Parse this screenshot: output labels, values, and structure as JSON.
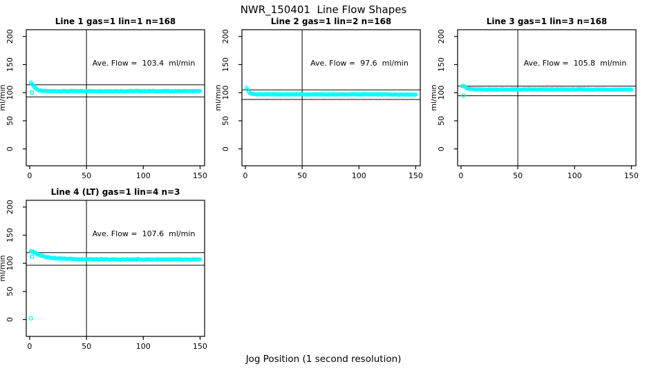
{
  "chart_data": {
    "type": "scatter",
    "title": "NWR_150401  Line Flow Shapes",
    "xlabel": "Jog Position (1 second resolution)",
    "ylabel": "ml/min",
    "xlim": [
      -3,
      154
    ],
    "ylim": [
      -30,
      212
    ],
    "xticks": [
      0,
      50,
      100,
      150
    ],
    "yticks": [
      0,
      50,
      100,
      150,
      200
    ],
    "grid": false,
    "legend": "none",
    "marker_color": "#00FFFF",
    "axis_color": "#000000",
    "vline_x": 50,
    "panels": [
      {
        "title": "Line 1 gas=1 lin=1 n=168",
        "annotation": "Ave. Flow =  103.4  ml/min",
        "ave_flow": 103.4,
        "hlines": [
          114,
          92.5
        ],
        "profile": [
          [
            1,
            117.5
          ],
          [
            2,
            116
          ],
          [
            3,
            113
          ],
          [
            4,
            110.5
          ],
          [
            5,
            108.3
          ],
          [
            6,
            106.6
          ],
          [
            7,
            105.4
          ],
          [
            8,
            104.5
          ],
          [
            10,
            103.4
          ],
          [
            12,
            103
          ],
          [
            15,
            102.8
          ],
          [
            20,
            102.7
          ],
          [
            50,
            102.7
          ],
          [
            100,
            102.8
          ],
          [
            150,
            102.6
          ]
        ],
        "outliers": [
          {
            "x": 2,
            "y": 100,
            "shape": "square"
          }
        ]
      },
      {
        "title": "Line 2 gas=1 lin=2 n=168",
        "annotation": "Ave. Flow =  97.6  ml/min",
        "ave_flow": 97.6,
        "hlines": [
          105,
          88
        ],
        "profile": [
          [
            1,
            108.5
          ],
          [
            2,
            106
          ],
          [
            3,
            101.5
          ],
          [
            4,
            99.3
          ],
          [
            5,
            98.2
          ],
          [
            6,
            97.7
          ],
          [
            8,
            97.3
          ],
          [
            10,
            97.2
          ],
          [
            50,
            97
          ],
          [
            100,
            97.1
          ],
          [
            150,
            96.8
          ]
        ],
        "outliers": []
      },
      {
        "title": "Line 3 gas=1 lin=3 n=168",
        "annotation": "Ave. Flow =  105.8  ml/min",
        "ave_flow": 105.8,
        "hlines": [
          111.5,
          94.5
        ],
        "profile": [
          [
            1,
            112
          ],
          [
            2,
            112.5
          ],
          [
            3,
            111.2
          ],
          [
            4,
            109.5
          ],
          [
            5,
            108.2
          ],
          [
            6,
            107.3
          ],
          [
            8,
            106.4
          ],
          [
            10,
            105.9
          ],
          [
            12,
            105.7
          ],
          [
            50,
            105.6
          ],
          [
            100,
            105.7
          ],
          [
            150,
            105.5
          ]
        ],
        "outliers": [
          {
            "x": 2,
            "y": 95,
            "shape": "circle"
          }
        ]
      },
      {
        "title": "Line 4 (LT) gas=1 lin=4 n=3",
        "annotation": "Ave. Flow =  107.6  ml/min",
        "ave_flow": 107.6,
        "hlines": [
          119,
          96.5
        ],
        "profile": [
          [
            1,
            121.5
          ],
          [
            2,
            121
          ],
          [
            3,
            120.2
          ],
          [
            5,
            118.3
          ],
          [
            7,
            116.3
          ],
          [
            10,
            113.9
          ],
          [
            13,
            112.2
          ],
          [
            16,
            110.9
          ],
          [
            20,
            109.7
          ],
          [
            25,
            108.8
          ],
          [
            30,
            108.2
          ],
          [
            40,
            107.5
          ],
          [
            60,
            107
          ],
          [
            90,
            106.8
          ],
          [
            120,
            106.9
          ],
          [
            150,
            106.4
          ]
        ],
        "outliers": [
          {
            "x": 1,
            "y": 2,
            "shape": "circle"
          },
          {
            "x": 2,
            "y": 112,
            "shape": "square"
          }
        ]
      }
    ]
  }
}
